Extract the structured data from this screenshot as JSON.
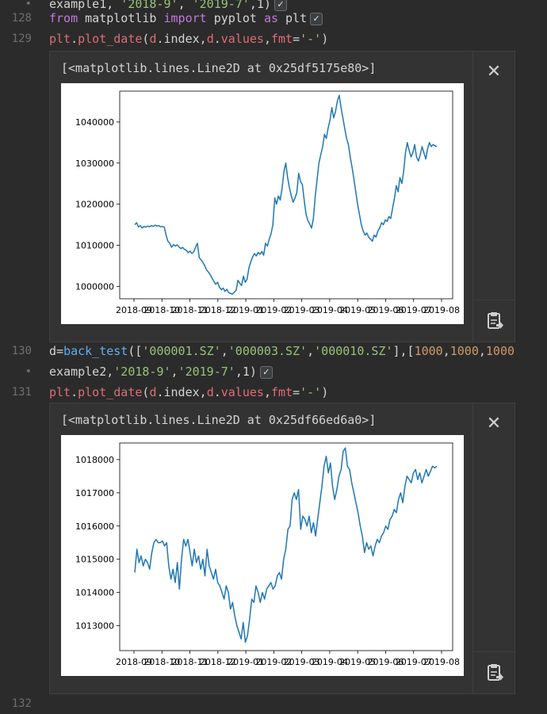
{
  "editor": {
    "lines": [
      {
        "gutter": "•",
        "tokens": [
          {
            "cls": "plain",
            "t": "example1,"
          },
          {
            "cls": "str",
            "t": " '2018-9'"
          },
          {
            "cls": "plain",
            "t": ", "
          },
          {
            "cls": "str",
            "t": "'2019-7'"
          },
          {
            "cls": "plain",
            "t": ",1)"
          }
        ]
      },
      {
        "gutter": "128",
        "tokens": [
          {
            "cls": "kw",
            "t": "from"
          },
          {
            "cls": "plain",
            "t": " matplotlib "
          },
          {
            "cls": "kw",
            "t": "import"
          },
          {
            "cls": "plain",
            "t": " pyplot "
          },
          {
            "cls": "kw",
            "t": "as"
          },
          {
            "cls": "plain",
            "t": " plt"
          }
        ]
      },
      {
        "gutter": "129",
        "tokens": [
          {
            "cls": "fn",
            "t": "plt"
          },
          {
            "cls": "plain",
            "t": "."
          },
          {
            "cls": "fn",
            "t": "plot_date"
          },
          {
            "cls": "plain",
            "t": "("
          },
          {
            "cls": "fn",
            "t": "d"
          },
          {
            "cls": "plain",
            "t": ".index,"
          },
          {
            "cls": "fn",
            "t": "d"
          },
          {
            "cls": "plain",
            "t": "."
          },
          {
            "cls": "fn",
            "t": "values"
          },
          {
            "cls": "plain",
            "t": ","
          },
          {
            "cls": "fn",
            "t": "fmt"
          },
          {
            "cls": "plain",
            "t": "="
          },
          {
            "cls": "str",
            "t": "'-'"
          },
          {
            "cls": "plain",
            "t": ")"
          }
        ]
      },
      {
        "gutter": "130",
        "tokens": [
          {
            "cls": "plain",
            "t": "d="
          },
          {
            "cls": "call",
            "t": "back_test"
          },
          {
            "cls": "plain",
            "t": "(["
          },
          {
            "cls": "str",
            "t": "'000001.SZ'"
          },
          {
            "cls": "plain",
            "t": ","
          },
          {
            "cls": "str",
            "t": "'000003.SZ'"
          },
          {
            "cls": "plain",
            "t": ","
          },
          {
            "cls": "str",
            "t": "'000010.SZ'"
          },
          {
            "cls": "plain",
            "t": "],["
          },
          {
            "cls": "num",
            "t": "1000"
          },
          {
            "cls": "plain",
            "t": ","
          },
          {
            "cls": "num",
            "t": "1000"
          },
          {
            "cls": "plain",
            "t": ","
          },
          {
            "cls": "num",
            "t": "1000"
          }
        ]
      },
      {
        "gutter": "•",
        "tokens": [
          {
            "cls": "plain",
            "t": "example2,"
          },
          {
            "cls": "str",
            "t": "'2018-9'"
          },
          {
            "cls": "plain",
            "t": ","
          },
          {
            "cls": "str",
            "t": "'2019-7'"
          },
          {
            "cls": "plain",
            "t": ",1)"
          }
        ]
      },
      {
        "gutter": "131",
        "tokens": [
          {
            "cls": "fn",
            "t": "plt"
          },
          {
            "cls": "plain",
            "t": "."
          },
          {
            "cls": "fn",
            "t": "plot_date"
          },
          {
            "cls": "plain",
            "t": "("
          },
          {
            "cls": "fn",
            "t": "d"
          },
          {
            "cls": "plain",
            "t": ".index,"
          },
          {
            "cls": "fn",
            "t": "d"
          },
          {
            "cls": "plain",
            "t": "."
          },
          {
            "cls": "fn",
            "t": "values"
          },
          {
            "cls": "plain",
            "t": ","
          },
          {
            "cls": "fn",
            "t": "fmt"
          },
          {
            "cls": "plain",
            "t": "="
          },
          {
            "cls": "str",
            "t": "'-'"
          },
          {
            "cls": "plain",
            "t": ")"
          }
        ]
      },
      {
        "gutter": "132",
        "tokens": []
      }
    ],
    "checkmark": "✓"
  },
  "outputs": [
    {
      "repr": "[<matplotlib.lines.Line2D at 0x25df5175e80>]",
      "close_label": "✕",
      "chart_data": {
        "type": "line",
        "ylim": [
          997000,
          1047500
        ],
        "yticks": [
          1000000,
          1010000,
          1020000,
          1030000,
          1040000
        ],
        "ytick_labels": [
          "1000000",
          "1010000",
          "1020000",
          "1030000",
          "1040000"
        ],
        "xtick_labels": [
          "2018-09",
          "2018-10",
          "2018-11",
          "2018-12",
          "2019-01",
          "2019-02",
          "2019-03",
          "2019-04",
          "2019-05",
          "2019-06",
          "2019-07",
          "2019-08"
        ],
        "line_color": "#1f77b4",
        "values": [
          1015000,
          1015500,
          1014500,
          1014800,
          1014200,
          1014600,
          1014400,
          1014700,
          1014500,
          1014800,
          1014600,
          1014900,
          1014700,
          1014800,
          1014500,
          1014600,
          1014400,
          1012500,
          1011000,
          1010500,
          1009500,
          1010200,
          1009800,
          1010100,
          1009600,
          1009200,
          1009500,
          1009000,
          1008800,
          1008200,
          1008600,
          1008000,
          1008400,
          1009500,
          1010500,
          1007000,
          1006500,
          1005800,
          1005000,
          1004000,
          1003500,
          1002800,
          1002000,
          1001200,
          1000500,
          1001000,
          999800,
          999200,
          999600,
          998800,
          999300,
          998500,
          998300,
          998100,
          998600,
          999000,
          1001500,
          1000800,
          1000200,
          1002500,
          1001000,
          1001800,
          1004500,
          1006000,
          1007200,
          1008000,
          1007400,
          1008300,
          1007800,
          1008500,
          1007600,
          1010500,
          1009800,
          1011500,
          1012800,
          1015000,
          1021500,
          1020000,
          1022000,
          1021000,
          1024000,
          1028000,
          1030000,
          1026500,
          1024000,
          1022000,
          1020500,
          1021500,
          1022800,
          1027500,
          1025500,
          1024800,
          1021000,
          1017500,
          1016000,
          1015200,
          1014200,
          1016500,
          1022000,
          1026000,
          1030000,
          1032000,
          1034000,
          1037000,
          1036000,
          1038500,
          1040500,
          1043500,
          1041000,
          1042500,
          1045000,
          1046500,
          1043500,
          1041000,
          1038500,
          1036000,
          1034500,
          1031500,
          1029000,
          1026000,
          1023000,
          1020000,
          1017500,
          1015000,
          1013500,
          1012500,
          1013000,
          1012000,
          1011500,
          1011000,
          1012500,
          1012000,
          1013500,
          1014200,
          1015500,
          1015000,
          1016200,
          1015800,
          1017000,
          1016500,
          1019000,
          1021500,
          1024500,
          1023000,
          1026500,
          1025000,
          1028000,
          1032500,
          1035000,
          1033000,
          1031500,
          1032500,
          1034500,
          1031500,
          1030500,
          1032000,
          1034000,
          1032500,
          1031000,
          1033500,
          1035000,
          1034000,
          1034500,
          1034200,
          1034000
        ]
      }
    },
    {
      "repr": "[<matplotlib.lines.Line2D at 0x25df66ed6a0>]",
      "close_label": "✕",
      "chart_data": {
        "type": "line",
        "ylim": [
          1012250,
          1018500
        ],
        "yticks": [
          1013000,
          1014000,
          1015000,
          1016000,
          1017000,
          1018000
        ],
        "ytick_labels": [
          "1013000",
          "1014000",
          "1015000",
          "1016000",
          "1017000",
          "1018000"
        ],
        "xtick_labels": [
          "2018-09",
          "2018-10",
          "2018-11",
          "2018-12",
          "2019-01",
          "2019-02",
          "2019-03",
          "2019-04",
          "2019-05",
          "2019-06",
          "2019-07",
          "2019-08"
        ],
        "line_color": "#1f77b4",
        "values": [
          1014600,
          1015300,
          1014900,
          1015100,
          1014800,
          1015000,
          1014900,
          1014700,
          1015200,
          1015500,
          1015600,
          1015500,
          1015500,
          1015550,
          1015400,
          1015500,
          1014800,
          1014400,
          1014700,
          1014300,
          1014900,
          1014100,
          1015000,
          1015600,
          1015400,
          1015600,
          1015200,
          1014800,
          1015300,
          1014900,
          1015100,
          1014700,
          1015000,
          1014500,
          1015300,
          1014800,
          1014600,
          1014400,
          1014700,
          1014300,
          1014200,
          1014000,
          1013800,
          1014200,
          1014000,
          1013500,
          1013700,
          1013300,
          1013000,
          1012800,
          1012600,
          1013100,
          1012500,
          1012700,
          1013200,
          1013800,
          1013700,
          1014200,
          1014000,
          1013700,
          1014000,
          1013800,
          1014100,
          1014200,
          1014300,
          1014100,
          1014200,
          1014500,
          1014600,
          1014400,
          1015000,
          1015300,
          1015900,
          1016000,
          1016800,
          1017000,
          1016800,
          1017100,
          1015900,
          1016300,
          1016200,
          1016000,
          1016300,
          1015800,
          1016100,
          1015700,
          1016200,
          1016700,
          1017200,
          1017800,
          1018100,
          1017600,
          1017900,
          1017200,
          1016800,
          1017100,
          1017500,
          1017700,
          1018250,
          1018350,
          1017800,
          1017700,
          1017300,
          1017000,
          1016700,
          1016400,
          1016000,
          1015700,
          1015200,
          1015500,
          1015300,
          1015400,
          1015100,
          1015400,
          1015600,
          1015500,
          1015700,
          1015800,
          1016000,
          1015900,
          1016200,
          1016300,
          1016500,
          1016400,
          1016800,
          1017000,
          1016700,
          1017200,
          1017500,
          1017400,
          1017300,
          1017600,
          1017700,
          1017400,
          1017600,
          1017300,
          1017500,
          1017700,
          1017500,
          1017650,
          1017800,
          1017750,
          1017800
        ]
      }
    }
  ]
}
